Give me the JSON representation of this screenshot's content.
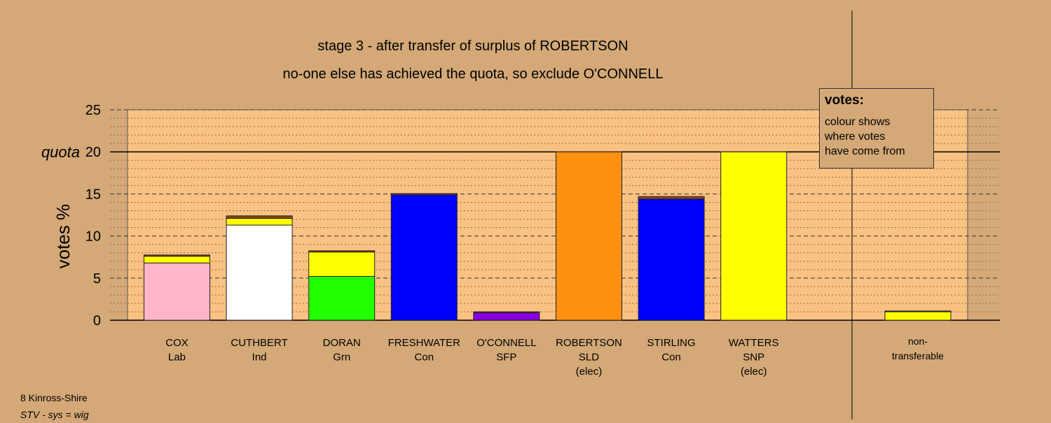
{
  "chart_data": {
    "type": "bar",
    "title": "stage 3 - after transfer of surplus of ROBERTSON",
    "subtitle": "no-one else has achieved the quota, so exclude O'CONNELL",
    "ylabel": "votes %",
    "ylim": [
      0,
      25
    ],
    "yticks": [
      "0",
      "5",
      "10",
      "15",
      "20",
      "25"
    ],
    "quota": {
      "label": "quota",
      "value": 20
    },
    "grid": true,
    "candidates": [
      {
        "name": "COX",
        "party": "Lab",
        "status": "",
        "segments": [
          {
            "color": "#ffb6c8",
            "value": 6.8
          },
          {
            "color": "#ffff00",
            "value": 0.8
          },
          {
            "color": "#8b4513",
            "value": 0.15
          }
        ]
      },
      {
        "name": "CUTHBERT",
        "party": "Ind",
        "status": "",
        "segments": [
          {
            "color": "#ffffff",
            "value": 11.3
          },
          {
            "color": "#ffff00",
            "value": 0.8
          },
          {
            "color": "#8b4513",
            "value": 0.3
          }
        ]
      },
      {
        "name": "DORAN",
        "party": "Grn",
        "status": "",
        "segments": [
          {
            "color": "#22ff00",
            "value": 5.2
          },
          {
            "color": "#ffff00",
            "value": 2.9
          },
          {
            "color": "#8b4513",
            "value": 0.15
          }
        ]
      },
      {
        "name": "FRESHWATER",
        "party": "Con",
        "status": "",
        "segments": [
          {
            "color": "#0000ff",
            "value": 14.9
          },
          {
            "color": "#8b4513",
            "value": 0.15
          }
        ]
      },
      {
        "name": "O'CONNELL",
        "party": "SFP",
        "status": "",
        "segments": [
          {
            "color": "#8800e0",
            "value": 0.9
          },
          {
            "color": "#8b4513",
            "value": 0.1
          }
        ]
      },
      {
        "name": "ROBERTSON",
        "party": "SLD",
        "status": "(elec)",
        "segments": [
          {
            "color": "#ff9010",
            "value": 20
          }
        ]
      },
      {
        "name": "STIRLING",
        "party": "Con",
        "status": "",
        "segments": [
          {
            "color": "#0000ff",
            "value": 14.4
          },
          {
            "color": "#8b4513",
            "value": 0.3
          }
        ]
      },
      {
        "name": "WATTERS",
        "party": "SNP",
        "status": "(elec)",
        "segments": [
          {
            "color": "#ffff00",
            "value": 20
          }
        ]
      }
    ],
    "nontransferable": {
      "label_line1": "non-",
      "label_line2": "transferable",
      "segments": [
        {
          "color": "#ffff00",
          "value": 1.0
        },
        {
          "color": "#8b4513",
          "value": 0.1
        }
      ]
    }
  },
  "legend": {
    "title": "votes:",
    "lines": [
      "colour shows",
      "where votes",
      "have come from"
    ]
  },
  "footer": {
    "area": "8 Kinross-Shire",
    "system": "STV - sys = wig"
  },
  "colors": {
    "background": "#d4a977",
    "plot_panel": "#f9c283"
  }
}
